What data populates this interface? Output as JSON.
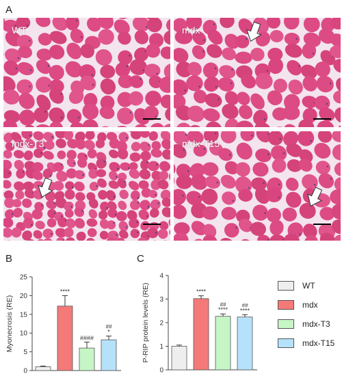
{
  "panel_labels": {
    "a": "A",
    "b": "B",
    "c": "C"
  },
  "histology": [
    {
      "label": "WT",
      "arrow": false,
      "arrow_dir": ""
    },
    {
      "label": "mdx",
      "arrow": true,
      "arrow_dir": "down"
    },
    {
      "label": "mdx-T3",
      "arrow": true,
      "arrow_dir": "down"
    },
    {
      "label": "mdx-T15",
      "arrow": true,
      "arrow_dir": "down"
    }
  ],
  "legend": [
    {
      "label": "WT",
      "color": "#eeeeee"
    },
    {
      "label": "mdx",
      "color": "#f47a79"
    },
    {
      "label": "mdx-T3",
      "color": "#c6f5c6"
    },
    {
      "label": "mdx-T15",
      "color": "#b5e1fa"
    }
  ],
  "chart_data": [
    {
      "type": "bar",
      "categories": [
        "WT",
        "mdx",
        "mdx-T3",
        "mdx-T15"
      ],
      "values": [
        1.0,
        17.2,
        6.0,
        8.2
      ],
      "errors": [
        0.2,
        2.8,
        1.6,
        1.0
      ],
      "annotations": [
        "",
        "****",
        "####",
        "*"
      ],
      "annotations2": [
        "",
        "",
        "",
        "##"
      ],
      "ylabel": "Myonecrosis (RE)",
      "ylim": [
        0,
        25
      ],
      "yticks": [
        "0",
        "5",
        "10",
        "15",
        "20",
        "25"
      ],
      "colors": [
        "#eeeeee",
        "#f47a79",
        "#c6f5c6",
        "#b5e1fa"
      ]
    },
    {
      "type": "bar",
      "categories": [
        "WT",
        "mdx",
        "mdx-T3",
        "mdx-T15"
      ],
      "values": [
        1.0,
        3.02,
        2.27,
        2.24
      ],
      "errors": [
        0.05,
        0.12,
        0.1,
        0.1
      ],
      "annotations": [
        "",
        "****",
        "****",
        "****"
      ],
      "annotations2": [
        "",
        "",
        "##",
        "##"
      ],
      "ylabel": "P-RIP protein levels (RE)",
      "ylim": [
        0,
        4
      ],
      "yticks": [
        "0",
        "1",
        "2",
        "3",
        "4"
      ],
      "colors": [
        "#eeeeee",
        "#f47a79",
        "#c6f5c6",
        "#b5e1fa"
      ]
    }
  ]
}
